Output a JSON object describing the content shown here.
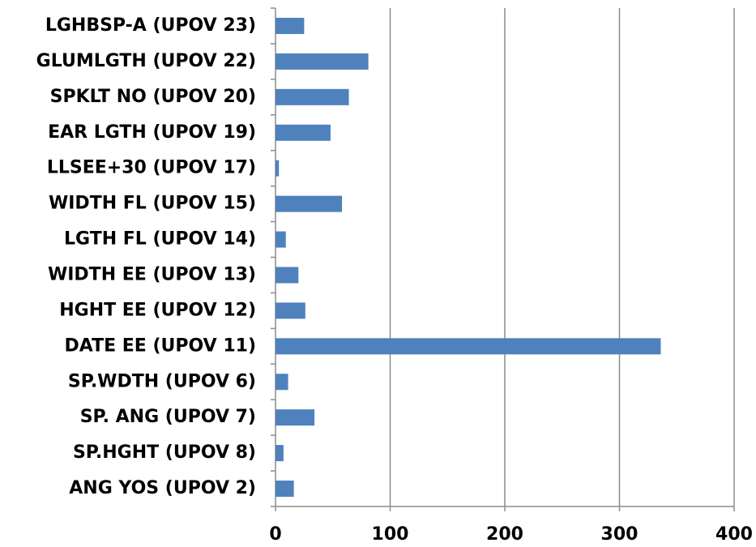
{
  "chart_data": {
    "type": "barh",
    "categories": [
      "LGHBSP-A (UPOV 23)",
      "GLUMLGTH (UPOV 22)",
      "SPKLT NO (UPOV 20)",
      "EAR LGTH (UPOV 19)",
      "LLSEE+30 (UPOV 17)",
      "WIDTH FL (UPOV 15)",
      "LGTH FL (UPOV 14)",
      "WIDTH EE (UPOV 13)",
      "HGHT EE (UPOV 12)",
      "DATE EE (UPOV 11)",
      "SP.WDTH (UPOV 6)",
      "SP. ANG (UPOV 7)",
      "SP.HGHT (UPOV 8)",
      "ANG YOS (UPOV 2)"
    ],
    "values": [
      25,
      81,
      64,
      48,
      3,
      58,
      9,
      20,
      26,
      336,
      11,
      34,
      7,
      16
    ],
    "color": "#4f81bd",
    "xlim": [
      0,
      400
    ],
    "xticks": [
      0,
      100,
      200,
      300,
      400
    ],
    "grid": true
  }
}
